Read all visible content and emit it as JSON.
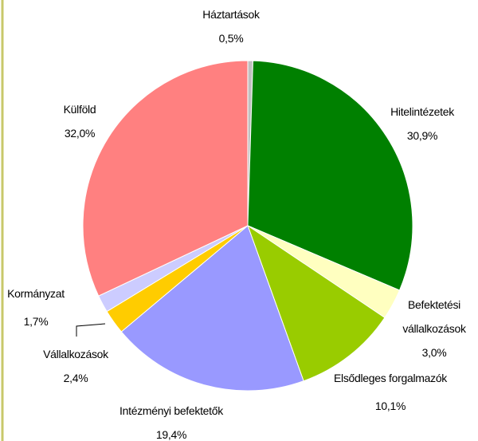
{
  "chart_data": {
    "type": "pie",
    "categories": [
      "Háztartások",
      "Hitelintézetek",
      "Befektetési vállalkozások",
      "Elsődleges forgalmazók",
      "Intézményi befektetők",
      "Vállalkozások",
      "Kormányzat",
      "Külföld"
    ],
    "values": [
      0.5,
      30.9,
      3.0,
      10.1,
      19.4,
      2.4,
      1.7,
      32.0
    ],
    "value_labels": [
      "0,5%",
      "30,9%",
      "3,0%",
      "10,1%",
      "19,4%",
      "2,4%",
      "1,7%",
      "32,0%"
    ],
    "colors": [
      "#c0c0c0",
      "#008000",
      "#ffffc0",
      "#99cc00",
      "#9999ff",
      "#ffcc00",
      "#ccccff",
      "#ff8080"
    ]
  }
}
